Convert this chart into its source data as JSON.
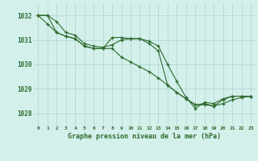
{
  "title": "Graphe pression niveau de la mer (hPa)",
  "x_labels": [
    "0",
    "1",
    "2",
    "3",
    "4",
    "5",
    "6",
    "7",
    "8",
    "9",
    "10",
    "11",
    "12",
    "13",
    "14",
    "15",
    "16",
    "17",
    "18",
    "19",
    "20",
    "21",
    "22",
    "23"
  ],
  "x_values": [
    0,
    1,
    2,
    3,
    4,
    5,
    6,
    7,
    8,
    9,
    10,
    11,
    12,
    13,
    14,
    15,
    16,
    17,
    18,
    19,
    20,
    21,
    22,
    23
  ],
  "line1": [
    1032.0,
    1031.65,
    1031.3,
    1031.15,
    1031.05,
    1030.75,
    1030.65,
    1030.65,
    1030.65,
    1030.3,
    1030.1,
    1029.9,
    1029.7,
    1029.45,
    1029.15,
    1028.85,
    1028.6,
    1028.35,
    1028.35,
    1028.3,
    1028.4,
    1028.55,
    1028.65,
    1028.7
  ],
  "line2": [
    1032.0,
    1032.0,
    1031.3,
    1031.15,
    1031.05,
    1030.75,
    1030.65,
    1030.65,
    1031.1,
    1031.1,
    1031.05,
    1031.05,
    1030.85,
    1030.55,
    1029.15,
    1028.85,
    1028.6,
    1028.35,
    1028.4,
    1028.3,
    1028.55,
    1028.7,
    1028.7,
    1028.7
  ],
  "line3": [
    1032.0,
    1032.0,
    1031.75,
    1031.3,
    1031.2,
    1030.85,
    1030.75,
    1030.7,
    1030.8,
    1031.0,
    1031.05,
    1031.05,
    1030.95,
    1030.75,
    1030.0,
    1029.3,
    1028.65,
    1028.2,
    1028.45,
    1028.4,
    1028.6,
    1028.7,
    1028.7,
    1028.7
  ],
  "line_color": "#2d6a2d",
  "bg_color": "#d4f0eb",
  "grid_color": "#aed4ce",
  "ylim_min": 1027.5,
  "ylim_max": 1032.5,
  "yticks": [
    1028,
    1029,
    1030,
    1031,
    1032
  ],
  "marker": "+",
  "linewidth": 0.8,
  "markersize": 3.5
}
